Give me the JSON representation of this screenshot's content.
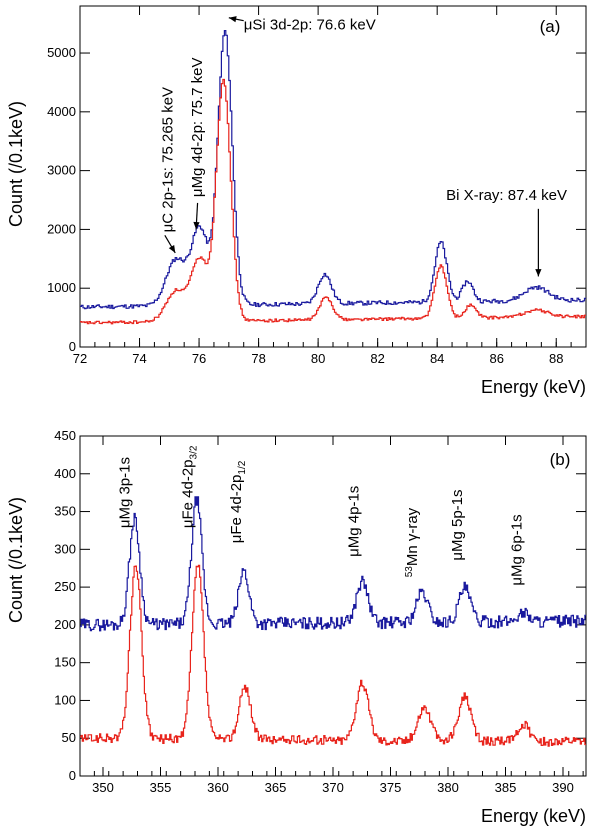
{
  "chart_data": [
    {
      "type": "line",
      "panel_label": "(a)",
      "xlabel": "Energy (keV)",
      "ylabel": "Count (/0.1keV)",
      "xlim": [
        72,
        89
      ],
      "ylim": [
        0,
        5800
      ],
      "xticks": [
        72,
        74,
        76,
        78,
        80,
        82,
        84,
        86,
        88
      ],
      "yticks": [
        0,
        1000,
        2000,
        3000,
        4000,
        5000
      ],
      "grid": false,
      "colors": {
        "upper": "#1a1a9e",
        "lower": "#e8241c"
      },
      "series": [
        {
          "color": "#1a1a9e",
          "peaks": [
            {
              "x": 75.2,
              "h": 780,
              "w": 0.33
            },
            {
              "x": 76.0,
              "h": 1300,
              "w": 0.28
            },
            {
              "x": 76.85,
              "h": 4650,
              "w": 0.24
            },
            {
              "x": 80.2,
              "h": 500,
              "w": 0.22
            },
            {
              "x": 84.1,
              "h": 1020,
              "w": 0.2
            },
            {
              "x": 85.0,
              "h": 350,
              "w": 0.18
            },
            {
              "x": 87.3,
              "h": 230,
              "w": 0.4
            }
          ],
          "baseline": {
            "start": 680,
            "end": 800
          },
          "noise": 35
        },
        {
          "color": "#e8241c",
          "peaks": [
            {
              "x": 75.2,
              "h": 520,
              "w": 0.33
            },
            {
              "x": 76.0,
              "h": 1050,
              "w": 0.28
            },
            {
              "x": 76.8,
              "h": 4100,
              "w": 0.24
            },
            {
              "x": 80.25,
              "h": 380,
              "w": 0.22
            },
            {
              "x": 84.1,
              "h": 900,
              "w": 0.2
            },
            {
              "x": 85.1,
              "h": 220,
              "w": 0.18
            },
            {
              "x": 87.3,
              "h": 120,
              "w": 0.4
            }
          ],
          "baseline": {
            "start": 410,
            "end": 520
          },
          "noise": 25
        }
      ],
      "annotations": [
        {
          "text": "μSi 3d-2p: 76.6 keV",
          "x": 77.5,
          "y": 5400,
          "rotate": false,
          "arrow_from": [
            77.5,
            5550
          ],
          "arrow_to": [
            77.0,
            5600
          ]
        },
        {
          "text": "μMg 4d-2p: 75.7 keV",
          "x": 76.1,
          "y": 2550,
          "rotate": true,
          "arrow_from": [
            75.95,
            2450
          ],
          "arrow_to": [
            75.9,
            2000
          ]
        },
        {
          "text": "μC 2p-1s: 75.265 keV",
          "x": 75.1,
          "y": 1950,
          "rotate": true,
          "arrow_from": [
            74.85,
            1900
          ],
          "arrow_to": [
            75.2,
            1600
          ]
        },
        {
          "text": "Bi X-ray: 87.4 keV",
          "x": 84.3,
          "y": 2500,
          "rotate": false,
          "arrow_from": [
            87.4,
            2350
          ],
          "arrow_to": [
            87.4,
            1200
          ]
        }
      ]
    },
    {
      "type": "line",
      "panel_label": "(b)",
      "xlabel": "Energy (keV)",
      "ylabel": "Count (/0.1keV)",
      "xlim": [
        348,
        392
      ],
      "ylim": [
        0,
        450
      ],
      "xticks": [
        350,
        355,
        360,
        365,
        370,
        375,
        380,
        385,
        390
      ],
      "yticks": [
        0,
        50,
        100,
        150,
        200,
        250,
        300,
        350,
        400,
        450
      ],
      "grid": false,
      "series": [
        {
          "color": "#1a1a9e",
          "peaks": [
            {
              "x": 352.7,
              "h": 140,
              "w": 0.45
            },
            {
              "x": 358.1,
              "h": 165,
              "w": 0.45
            },
            {
              "x": 362.2,
              "h": 70,
              "w": 0.45
            },
            {
              "x": 372.5,
              "h": 55,
              "w": 0.5
            },
            {
              "x": 377.7,
              "h": 40,
              "w": 0.5
            },
            {
              "x": 381.4,
              "h": 45,
              "w": 0.5
            },
            {
              "x": 386.5,
              "h": 12,
              "w": 0.5
            }
          ],
          "baseline": {
            "start": 200,
            "end": 205
          },
          "noise": 8
        },
        {
          "color": "#e8241c",
          "peaks": [
            {
              "x": 352.8,
              "h": 230,
              "w": 0.5
            },
            {
              "x": 358.2,
              "h": 230,
              "w": 0.5
            },
            {
              "x": 362.3,
              "h": 70,
              "w": 0.5
            },
            {
              "x": 372.5,
              "h": 75,
              "w": 0.55
            },
            {
              "x": 377.9,
              "h": 45,
              "w": 0.55
            },
            {
              "x": 381.4,
              "h": 58,
              "w": 0.55
            },
            {
              "x": 386.5,
              "h": 22,
              "w": 0.55
            }
          ],
          "baseline": {
            "start": 50,
            "end": 45
          },
          "noise": 6
        }
      ],
      "annotations": [
        {
          "text": "μMg 3p-1s",
          "x": 352.3,
          "y": 328
        },
        {
          "text": "μFe 4d-2p3/2",
          "x": 357.8,
          "y": 328
        },
        {
          "text": "μFe 4d-2p1/2",
          "x": 362.0,
          "y": 308
        },
        {
          "text": "μMg 4p-1s",
          "x": 372.2,
          "y": 290
        },
        {
          "text": "53Mn γ-ray",
          "x": 377.3,
          "y": 263
        },
        {
          "text": "μMg 5p-1s",
          "x": 381.2,
          "y": 285
        },
        {
          "text": "μMg 6p-1s",
          "x": 386.4,
          "y": 252
        }
      ]
    }
  ]
}
